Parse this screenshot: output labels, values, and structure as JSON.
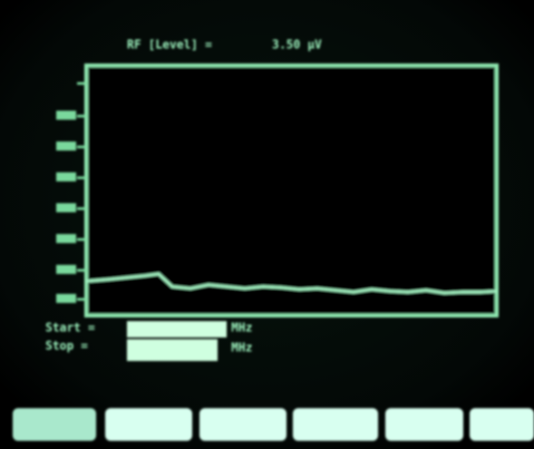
{
  "header": {
    "label": "RF [Level] =",
    "value": "3.50 µV"
  },
  "sweep": {
    "start_label": "Start =",
    "start_unit": "MHz",
    "stop_label": "Stop =",
    "stop_unit": "MHz"
  }
}
